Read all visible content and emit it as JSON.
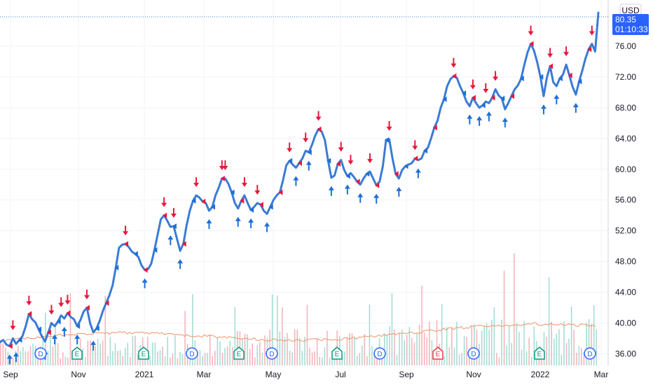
{
  "chart_data": {
    "type": "line",
    "currency": "USD",
    "last_price_label": "80.35",
    "countdown": "01:10:33",
    "ylim": [
      34.5,
      82.0
    ],
    "y_ticks": [
      36,
      40,
      44,
      48,
      52,
      56,
      60,
      64,
      68,
      72,
      76
    ],
    "y_tick_labels": [
      "36.00",
      "40.00",
      "44.00",
      "48.00",
      "52.00",
      "56.00",
      "60.00",
      "64.00",
      "68.00",
      "72.00",
      "76.00"
    ],
    "x_ticks": [
      "Sep",
      "Nov",
      "2021",
      "Mar",
      "May",
      "Jul",
      "Sep",
      "Nov",
      "2022",
      "Mar"
    ],
    "x_tick_positions": [
      15,
      112,
      206,
      291,
      390,
      486,
      580,
      676,
      771,
      858
    ],
    "series": [
      {
        "values": [
          37.5,
          37.8,
          37.2,
          37.0,
          38.0,
          37.3,
          37.8,
          38.3,
          39.6,
          41.2,
          40.5,
          40.1,
          39.2,
          38.3,
          37.6,
          38.8,
          40.0,
          39.6,
          40.2,
          41.0,
          40.6,
          41.3,
          40.8,
          40.5,
          39.6,
          40.4,
          41.5,
          42.0,
          40.0,
          38.8,
          39.3,
          40.3,
          41.6,
          42.6,
          43.6,
          44.9,
          47.2,
          49.8,
          50.2,
          50.3,
          49.9,
          49.3,
          49.0,
          48.6,
          47.5,
          46.9,
          47.0,
          47.7,
          49.5,
          51.5,
          53.5,
          54.0,
          53.3,
          52.5,
          52.6,
          51.0,
          49.4,
          50.3,
          52.7,
          54.6,
          55.9,
          56.6,
          56.3,
          55.8,
          55.6,
          54.6,
          55.1,
          56.6,
          57.6,
          58.8,
          58.8,
          58.1,
          57.0,
          55.6,
          54.9,
          55.9,
          56.6,
          55.6,
          54.7,
          55.1,
          55.6,
          55.4,
          54.6,
          54.2,
          55.1,
          56.0,
          56.6,
          57.0,
          58.6,
          60.5,
          61.1,
          60.6,
          60.2,
          60.8,
          61.4,
          62.4,
          62.2,
          63.2,
          64.4,
          65.2,
          64.9,
          63.8,
          61.1,
          58.9,
          59.2,
          60.7,
          61.2,
          59.9,
          59.1,
          59.5,
          59.0,
          58.4,
          58.0,
          58.8,
          59.4,
          59.7,
          58.8,
          57.9,
          58.4,
          60.4,
          63.8,
          63.9,
          61.4,
          59.4,
          58.8,
          59.9,
          60.4,
          60.6,
          60.8,
          61.4,
          61.2,
          61.4,
          62.4,
          62.8,
          64.0,
          65.4,
          66.3,
          68.0,
          69.1,
          70.8,
          71.7,
          72.1,
          71.9,
          70.8,
          69.9,
          68.8,
          68.2,
          69.3,
          68.6,
          68.0,
          68.3,
          68.8,
          68.6,
          69.3,
          70.4,
          69.6,
          69.2,
          67.8,
          68.6,
          69.5,
          70.4,
          70.9,
          71.8,
          73.6,
          75.2,
          76.3,
          75.4,
          73.9,
          72.0,
          69.5,
          71.9,
          73.4,
          71.3,
          70.8,
          71.8,
          72.3,
          73.6,
          72.2,
          70.7,
          69.7,
          71.4,
          72.8,
          74.4,
          75.6,
          76.3,
          75.3,
          80.35
        ]
      }
    ],
    "signal_up_count": 48,
    "signal_down_count": 52,
    "event_markers": [
      {
        "type": "D",
        "label": "D",
        "color": "#2962ff"
      },
      {
        "type": "E",
        "label": "E",
        "color": "#089981"
      },
      {
        "type": "E",
        "label": "E",
        "color": "#089981"
      },
      {
        "type": "D",
        "label": "D",
        "color": "#2962ff"
      },
      {
        "type": "E",
        "label": "E",
        "color": "#089981"
      },
      {
        "type": "D",
        "label": "D",
        "color": "#2962ff"
      },
      {
        "type": "E",
        "label": "E",
        "color": "#089981"
      },
      {
        "type": "D",
        "label": "D",
        "color": "#2962ff"
      },
      {
        "type": "E",
        "label": "E",
        "color": "#f23645"
      },
      {
        "type": "D",
        "label": "D",
        "color": "#2962ff"
      },
      {
        "type": "E",
        "label": "E",
        "color": "#089981"
      },
      {
        "type": "D",
        "label": "D",
        "color": "#2962ff"
      },
      {
        "type": "E",
        "label": "E",
        "color": "#089981"
      }
    ],
    "colors": {
      "line": "#3a7bd5",
      "up_arrow": "#1e6fd9",
      "down_arrow": "#e8173d",
      "volume_up": "#a8ddd4",
      "volume_down": "#f5b6bc",
      "volume_ma": "#f0936b",
      "price_label_bg": "#2962ff"
    }
  }
}
